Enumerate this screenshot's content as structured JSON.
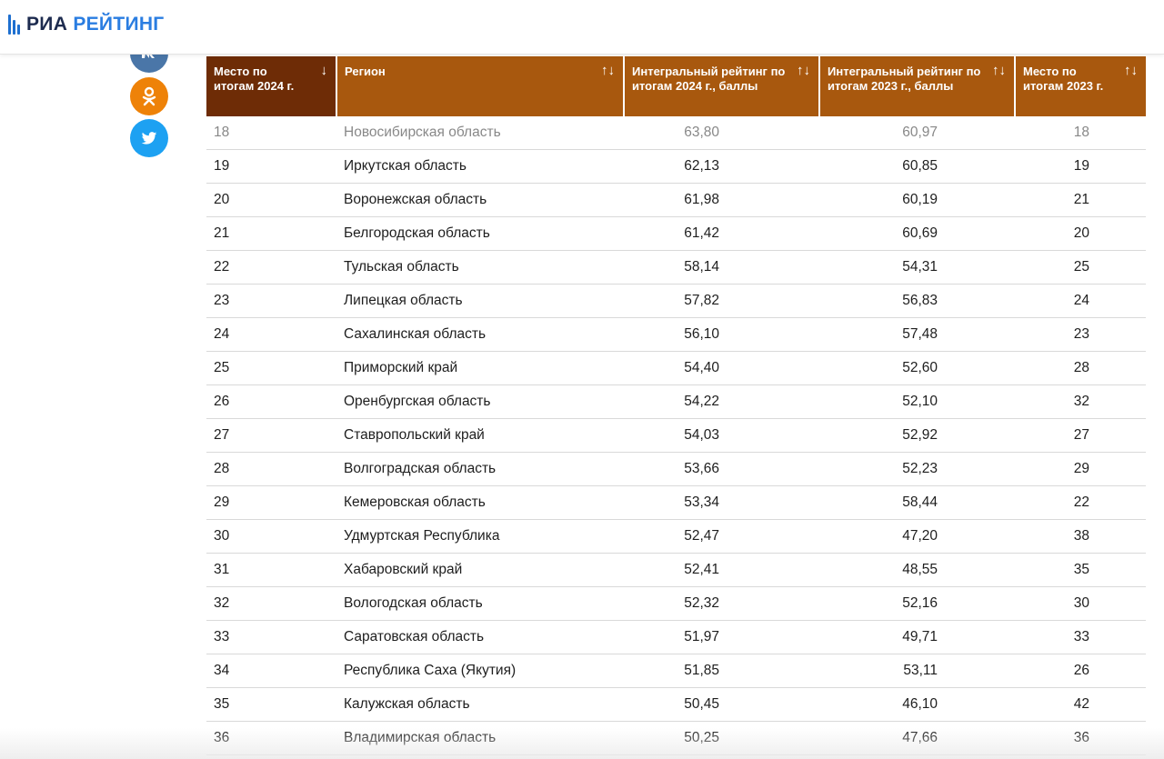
{
  "brand": {
    "part1": "РИА",
    "part2": "РЕЙТИНГ"
  },
  "share": [
    {
      "name": "vk-share-button",
      "icon": "vk-icon",
      "color": "#4a76a8",
      "glyph": "VK"
    },
    {
      "name": "ok-share-button",
      "icon": "odnoklassniki-icon",
      "color": "#ee8208",
      "glyph": "OK"
    },
    {
      "name": "twitter-share-button",
      "icon": "twitter-icon",
      "color": "#1da1f2",
      "glyph": "TW"
    }
  ],
  "table": {
    "headers": [
      {
        "label": "Место по итогам 2024 г.",
        "sort": "↓"
      },
      {
        "label": "Регион",
        "sort": "↑↓"
      },
      {
        "label": "Интегральный рейтинг по итогам 2024 г., баллы",
        "sort": "↑↓"
      },
      {
        "label": "Интегральный рейтинг по итогам 2023 г., баллы",
        "sort": "↑↓"
      },
      {
        "label": "Место по итогам 2023 г.",
        "sort": "↑↓"
      }
    ],
    "rows": [
      [
        "18",
        "Новосибирская область",
        "63,80",
        "60,97",
        "18"
      ],
      [
        "19",
        "Иркутская область",
        "62,13",
        "60,85",
        "19"
      ],
      [
        "20",
        "Воронежская область",
        "61,98",
        "60,19",
        "21"
      ],
      [
        "21",
        "Белгородская область",
        "61,42",
        "60,69",
        "20"
      ],
      [
        "22",
        "Тульская область",
        "58,14",
        "54,31",
        "25"
      ],
      [
        "23",
        "Липецкая область",
        "57,82",
        "56,83",
        "24"
      ],
      [
        "24",
        "Сахалинская область",
        "56,10",
        "57,48",
        "23"
      ],
      [
        "25",
        "Приморский край",
        "54,40",
        "52,60",
        "28"
      ],
      [
        "26",
        "Оренбургская область",
        "54,22",
        "52,10",
        "32"
      ],
      [
        "27",
        "Ставропольский край",
        "54,03",
        "52,92",
        "27"
      ],
      [
        "28",
        "Волгоградская область",
        "53,66",
        "52,23",
        "29"
      ],
      [
        "29",
        "Кемеровская область",
        "53,34",
        "58,44",
        "22"
      ],
      [
        "30",
        "Удмуртская Республика",
        "52,47",
        "47,20",
        "38"
      ],
      [
        "31",
        "Хабаровский край",
        "52,41",
        "48,55",
        "35"
      ],
      [
        "32",
        "Вологодская область",
        "52,32",
        "52,16",
        "30"
      ],
      [
        "33",
        "Саратовская область",
        "51,97",
        "49,71",
        "33"
      ],
      [
        "34",
        "Республика Саха (Якутия)",
        "51,85",
        "53,11",
        "26"
      ],
      [
        "35",
        "Калужская область",
        "50,45",
        "46,10",
        "42"
      ],
      [
        "36",
        "Владимирская область",
        "50,25",
        "47,66",
        "36"
      ]
    ]
  },
  "colors": {
    "header_bg": "#a8580e",
    "header_active_bg": "#6e2c06",
    "brand_blue": "#2a7de1"
  }
}
